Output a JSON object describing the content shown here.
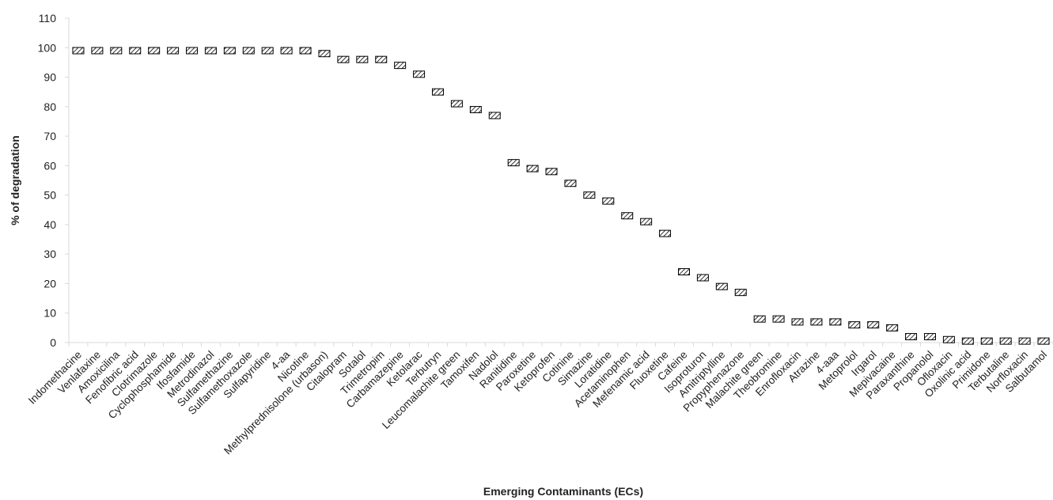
{
  "chart_data": {
    "type": "scatter",
    "title": "",
    "xlabel": "Emerging Contaminants (ECs)",
    "ylabel": "% of degradation",
    "ylim": [
      0,
      110
    ],
    "yticks": [
      0,
      10,
      20,
      30,
      40,
      50,
      60,
      70,
      80,
      90,
      100,
      110
    ],
    "grid": false,
    "legend": "none",
    "marker": "hatched-rectangle",
    "colors": {
      "marker_fill": "#ffffff",
      "marker_hatch": "#000000",
      "axis": "#d9d9d9",
      "text": "#222222"
    },
    "categories": [
      "Indomethacine",
      "Venlafaxine",
      "Amoxicilina",
      "Fenofibric acid",
      "Clotrimazole",
      "Cyclophosphamide",
      "Ifosfamide",
      "Metrodinazol",
      "Sulfamethazine",
      "Sulfamethoxazole",
      "Sulfapyridine",
      "4-aa",
      "Nicotine",
      "Methylprednisolone (urbason)",
      "Citalopram",
      "Sotalol",
      "Trimetropim",
      "Carbamazepine",
      "Ketolarac",
      "Terbutryn",
      "Leucomalachite green",
      "Tamoxifen",
      "Nadolol",
      "Ranitidine",
      "Paroxetine",
      "Ketoprofen",
      "Cotinine",
      "Simazine",
      "Loratidine",
      "Acetaminophen",
      "Mefenamic acid",
      "Fluoxetine",
      "Cafeine",
      "Isoproturon",
      "Amitriptylline",
      "Propyphenazone",
      "Malachite green",
      "Theobromine",
      "Enrofloxacin",
      "Atrazine",
      "4-aaa",
      "Metoprolol",
      "Irgarol",
      "Mepivacaine",
      "Paraxanthine",
      "Propanolol",
      "Ofloxacin",
      "Oxolinic acid",
      "Primidone",
      "Terbutaline",
      "Norfloxacin",
      "Salbutamol"
    ],
    "values": [
      99,
      99,
      99,
      99,
      99,
      99,
      99,
      99,
      99,
      99,
      99,
      99,
      99,
      98,
      96,
      96,
      96,
      94,
      91,
      85,
      81,
      79,
      77,
      61,
      59,
      58,
      54,
      50,
      48,
      43,
      41,
      37,
      24,
      22,
      19,
      17,
      8,
      8,
      7,
      7,
      7,
      6,
      6,
      5,
      2,
      2,
      1,
      0.5,
      0.5,
      0.5,
      0.5,
      0.5
    ]
  }
}
